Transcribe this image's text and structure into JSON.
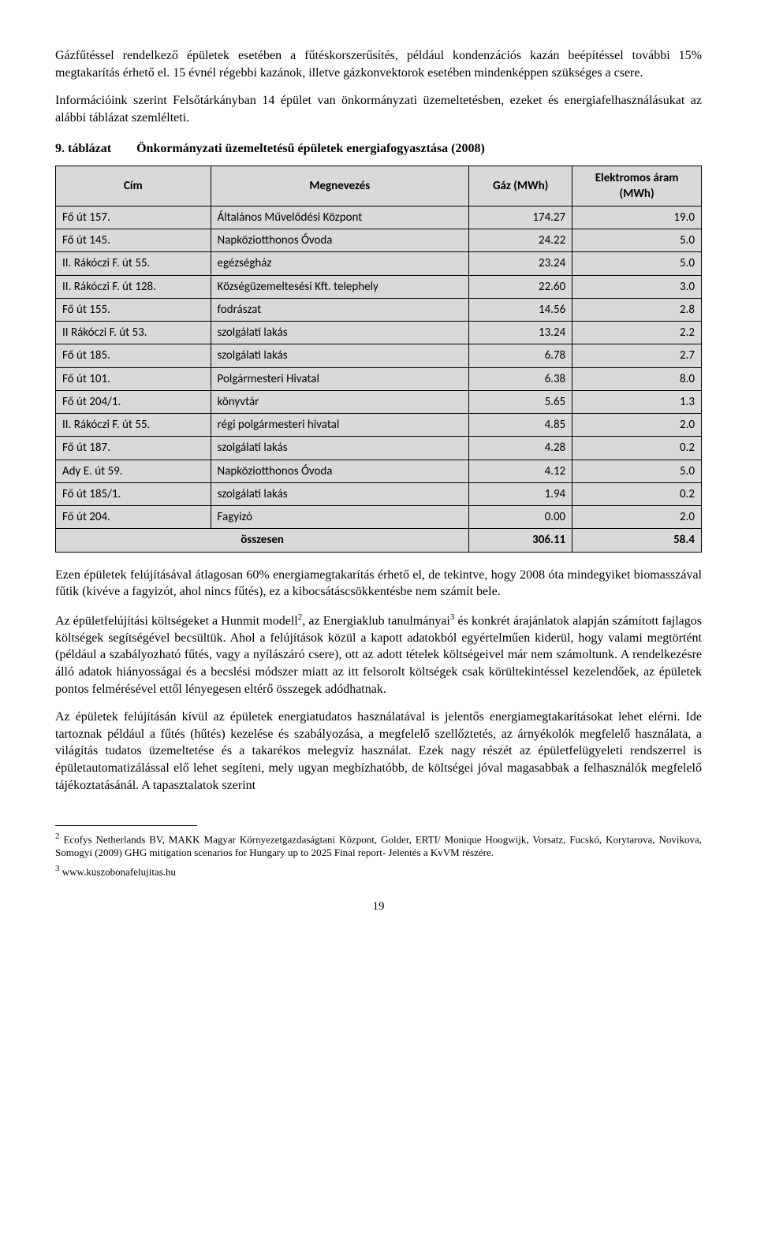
{
  "paragraphs": {
    "p1": "Gázfűtéssel rendelkező épületek esetében a fűtéskorszerűsítés, például kondenzációs kazán beépítéssel további 15% megtakarítás érhető el. 15 évnél régebbi kazánok, illetve gázkonvektorok esetében mindenképpen szükséges a csere.",
    "p2": "Információink szerint Felsőtárkányban 14 épület van önkormányzati üzemeltetésben, ezeket és energiafelhasználásukat az alábbi táblázat szemlélteti.",
    "p3_a": "Ezen épületek felújításával átlagosan 60% energiamegtakarítás érhető el, de tekintve, hogy 2008 óta mindegyiket biomasszával fűtik (kivéve a fagyizót, ahol nincs fűtés), ez a kibocsátáscsökkentésbe nem számít bele.",
    "p4_a": "Az épületfelújítási költségeket a Hunmit modell",
    "p4_b": ", az Energiaklub tanulmányai",
    "p4_c": " és konkrét árajánlatok alapján számított fajlagos költségek segítségével becsültük. Ahol a felújítások közül a kapott adatokból egyértelműen kiderül, hogy valami megtörtént (például a szabályozható fűtés, vagy a nyílászáró csere), ott az adott tételek költségeivel már nem számoltunk. A rendelkezésre álló adatok hiányosságai és a becslési módszer miatt az itt felsorolt költségek csak körültekintéssel kezelendőek, az épületek pontos felmérésével ettől lényegesen eltérő összegek adódhatnak.",
    "p5": "Az épületek felújításán kívül az épületek energiatudatos használatával is jelentős energiamegtakarításokat lehet elérni. Ide tartoznak például a fűtés (hűtés) kezelése és szabályozása, a megfelelő szellőztetés, az árnyékolók megfelelő használata, a világítás tudatos üzemeltetése és a takarékos melegvíz használat. Ezek nagy részét az épületfelügyeleti rendszerrel is épületautomatizálással elő lehet segíteni, mely ugyan megbízhatóbb, de költségei jóval magasabbak a felhasználók megfelelő tájékoztatásánál. A tapasztalatok szerint"
  },
  "table": {
    "caption_num": "9. táblázat",
    "caption_title": "Önkormányzati üzemeltetésű épületek energiafogyasztása (2008)",
    "headers": {
      "col1": "Cím",
      "col2": "Megnevezés",
      "col3": "Gáz (MWh)",
      "col4": "Elektromos áram (MWh)"
    },
    "rows": [
      {
        "c1": "Fő út 157.",
        "c2": "Általános Művelődési Központ",
        "c3": "174.27",
        "c4": "19.0"
      },
      {
        "c1": "Fő út 145.",
        "c2": "Napköziotthonos Óvoda",
        "c3": "24.22",
        "c4": "5.0"
      },
      {
        "c1": "II. Rákóczi F. út 55.",
        "c2": "egézségház",
        "c3": "23.24",
        "c4": "5.0"
      },
      {
        "c1": "II. Rákóczi F. út 128.",
        "c2": "Községüzemeltesési Kft. telephely",
        "c3": "22.60",
        "c4": "3.0"
      },
      {
        "c1": "Fő út 155.",
        "c2": "fodrászat",
        "c3": "14.56",
        "c4": "2.8"
      },
      {
        "c1": "II Rákóczi F. út 53.",
        "c2": "szolgálati lakás",
        "c3": "13.24",
        "c4": "2.2"
      },
      {
        "c1": "Fő út 185.",
        "c2": "szolgálati lakás",
        "c3": "6.78",
        "c4": "2.7"
      },
      {
        "c1": "Fő út 101.",
        "c2": "Polgármesteri Hivatal",
        "c3": "6.38",
        "c4": "8.0"
      },
      {
        "c1": "Fő út 204/1.",
        "c2": "könyvtár",
        "c3": "5.65",
        "c4": "1.3"
      },
      {
        "c1": "II. Rákóczi F. út 55.",
        "c2": "régi polgármesteri hivatal",
        "c3": "4.85",
        "c4": "2.0"
      },
      {
        "c1": "Fő út 187.",
        "c2": "szolgálati lakás",
        "c3": "4.28",
        "c4": "0.2"
      },
      {
        "c1": "Ady E. út 59.",
        "c2": "Napköziotthonos Óvoda",
        "c3": "4.12",
        "c4": "5.0"
      },
      {
        "c1": "Fő út 185/1.",
        "c2": "szolgálati lakás",
        "c3": "1.94",
        "c4": "0.2"
      },
      {
        "c1": "Fő út 204.",
        "c2": "Fagyizó",
        "c3": "0.00",
        "c4": "2.0"
      }
    ],
    "total": {
      "label": "összesen",
      "c3": "306.11",
      "c4": "58.4"
    }
  },
  "footnotes": {
    "f2_num": "2",
    "f2_text": " Ecofys Netherlands BV, MAKK Magyar Környezetgazdaságtani Központ, Golder, ERTI/ Monique Hoogwijk, Vorsatz, Fucskó, Korytarova, Novikova, Somogyi (2009) GHG mitigation scenarios for Hungary up to 2025 Final report- Jelentés a KvVM részére.",
    "f3_num": "3",
    "f3_text": " www.kuszobonafelujitas.hu"
  },
  "page_number": "19",
  "sup2": "2",
  "sup3": "3"
}
